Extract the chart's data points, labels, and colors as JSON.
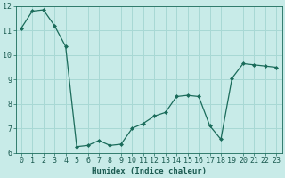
{
  "x": [
    0,
    1,
    2,
    3,
    4,
    5,
    6,
    7,
    8,
    9,
    10,
    11,
    12,
    13,
    14,
    15,
    16,
    17,
    18,
    19,
    20,
    21,
    22,
    23
  ],
  "y": [
    11.1,
    11.8,
    11.85,
    11.2,
    10.35,
    6.25,
    6.3,
    6.5,
    6.3,
    6.35,
    7.0,
    7.2,
    7.5,
    7.65,
    8.3,
    8.35,
    8.3,
    7.1,
    6.55,
    9.05,
    9.65,
    9.6,
    9.55,
    9.5
  ],
  "line_color": "#1a6b5a",
  "marker": "D",
  "marker_size": 2.0,
  "bg_color": "#c8ebe8",
  "grid_color": "#a8d8d4",
  "xlabel": "Humidex (Indice chaleur)",
  "xlim": [
    -0.5,
    23.5
  ],
  "ylim": [
    6,
    12
  ],
  "yticks": [
    6,
    7,
    8,
    9,
    10,
    11,
    12
  ],
  "xticks": [
    0,
    1,
    2,
    3,
    4,
    5,
    6,
    7,
    8,
    9,
    10,
    11,
    12,
    13,
    14,
    15,
    16,
    17,
    18,
    19,
    20,
    21,
    22,
    23
  ],
  "xlabel_fontsize": 6.5,
  "tick_fontsize": 6.0,
  "linewidth": 0.9
}
